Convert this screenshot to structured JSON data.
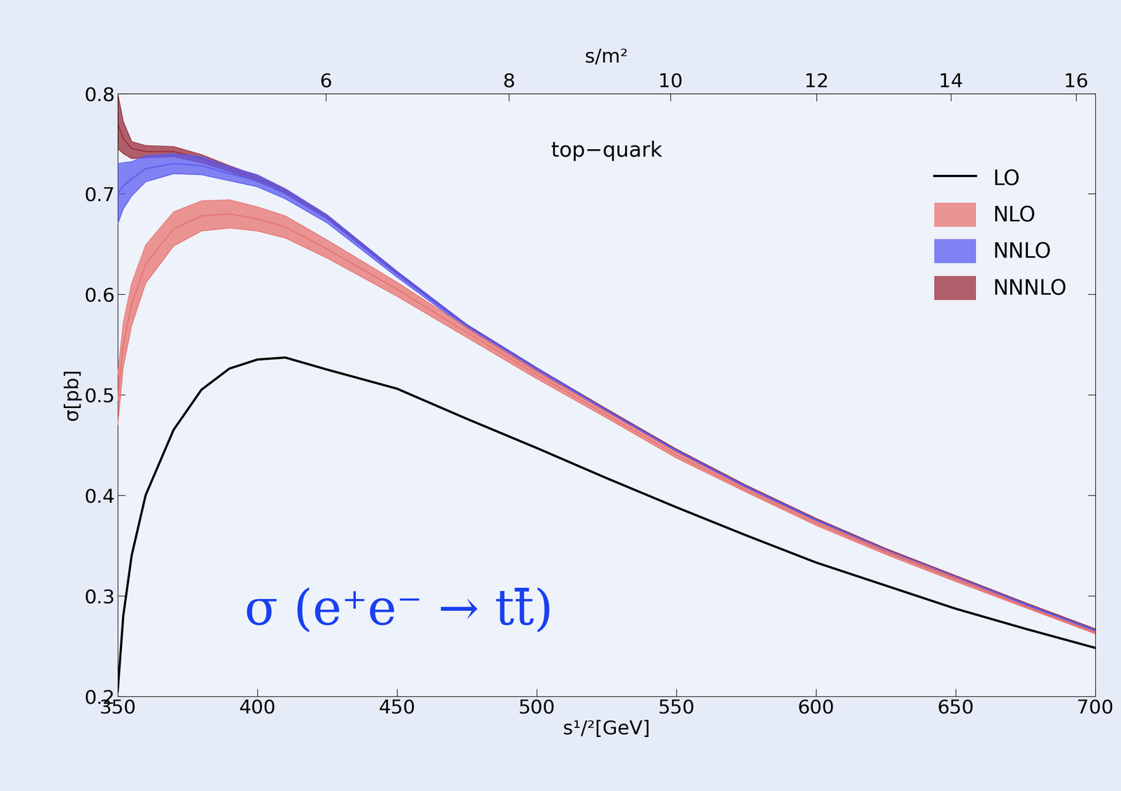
{
  "chart_data": {
    "type": "line",
    "title": "top−quark",
    "annotation": "σ (e⁺e⁻ → tt̄)",
    "x_label": "s¹/²[GeV]",
    "y_label": "σ[pb]",
    "x2_label": "s/m²",
    "x": [
      350,
      352,
      355,
      360,
      370,
      380,
      390,
      400,
      410,
      425,
      450,
      475,
      500,
      525,
      550,
      575,
      600,
      625,
      650,
      675,
      700
    ],
    "xlim": [
      350,
      700
    ],
    "xticks": [
      350,
      400,
      450,
      500,
      550,
      600,
      650,
      700
    ],
    "ylim": [
      0.2,
      0.8
    ],
    "yticks": [
      0.2,
      0.3,
      0.4,
      0.5,
      0.6,
      0.7,
      0.8
    ],
    "x2lim": [
      4.08,
      16.32
    ],
    "x2ticks": [
      6,
      8,
      10,
      12,
      14,
      16
    ],
    "legend": "upper right",
    "series": [
      {
        "name": "LO",
        "type": "line",
        "color": "#000000",
        "values": [
          0.205,
          0.28,
          0.34,
          0.4,
          0.465,
          0.505,
          0.526,
          0.535,
          0.537,
          0.525,
          0.506,
          0.476,
          0.447,
          0.417,
          0.388,
          0.36,
          0.333,
          0.31,
          0.287,
          0.267,
          0.248
        ]
      },
      {
        "name": "NLO",
        "type": "band",
        "color": "#e8736f",
        "values": [
          0.495,
          0.55,
          0.59,
          0.63,
          0.665,
          0.678,
          0.68,
          0.675,
          0.667,
          0.645,
          0.605,
          0.562,
          0.52,
          0.48,
          0.44,
          0.405,
          0.372,
          0.343,
          0.316,
          0.289,
          0.263
        ],
        "lower": [
          0.47,
          0.528,
          0.569,
          0.611,
          0.648,
          0.663,
          0.666,
          0.663,
          0.656,
          0.636,
          0.598,
          0.557,
          0.516,
          0.477,
          0.437,
          0.403,
          0.37,
          0.341,
          0.314,
          0.288,
          0.262
        ],
        "upper": [
          0.52,
          0.572,
          0.611,
          0.649,
          0.682,
          0.693,
          0.694,
          0.687,
          0.678,
          0.654,
          0.612,
          0.567,
          0.524,
          0.483,
          0.443,
          0.407,
          0.374,
          0.345,
          0.318,
          0.29,
          0.264
        ]
      },
      {
        "name": "NNLO",
        "type": "band",
        "color": "#5b5bf0",
        "values": [
          0.7,
          0.708,
          0.715,
          0.725,
          0.73,
          0.728,
          0.72,
          0.713,
          0.7,
          0.675,
          0.62,
          0.568,
          0.525,
          0.484,
          0.444,
          0.408,
          0.375,
          0.345,
          0.318,
          0.291,
          0.265
        ],
        "lower": [
          0.67,
          0.685,
          0.698,
          0.712,
          0.72,
          0.719,
          0.713,
          0.707,
          0.695,
          0.671,
          0.617,
          0.566,
          0.523,
          0.483,
          0.443,
          0.407,
          0.374,
          0.344,
          0.317,
          0.29,
          0.264
        ],
        "upper": [
          0.73,
          0.731,
          0.732,
          0.738,
          0.74,
          0.737,
          0.727,
          0.719,
          0.705,
          0.679,
          0.623,
          0.57,
          0.527,
          0.485,
          0.445,
          0.409,
          0.376,
          0.346,
          0.319,
          0.292,
          0.266
        ]
      },
      {
        "name": "NNNLO",
        "type": "band",
        "color": "#9b2d3a",
        "values": [
          0.77,
          0.755,
          0.745,
          0.742,
          0.742,
          0.735,
          0.725,
          0.715,
          0.703,
          0.677,
          0.621,
          0.569,
          0.526,
          0.485,
          0.445,
          0.409,
          0.376,
          0.346,
          0.319,
          0.292,
          0.266
        ],
        "lower": [
          0.745,
          0.74,
          0.735,
          0.736,
          0.737,
          0.731,
          0.722,
          0.712,
          0.701,
          0.675,
          0.62,
          0.568,
          0.525,
          0.484,
          0.444,
          0.408,
          0.375,
          0.345,
          0.318,
          0.291,
          0.265
        ],
        "upper": [
          0.8,
          0.772,
          0.752,
          0.748,
          0.747,
          0.739,
          0.728,
          0.718,
          0.705,
          0.679,
          0.622,
          0.57,
          0.527,
          0.486,
          0.446,
          0.41,
          0.377,
          0.347,
          0.32,
          0.293,
          0.267
        ]
      }
    ]
  }
}
